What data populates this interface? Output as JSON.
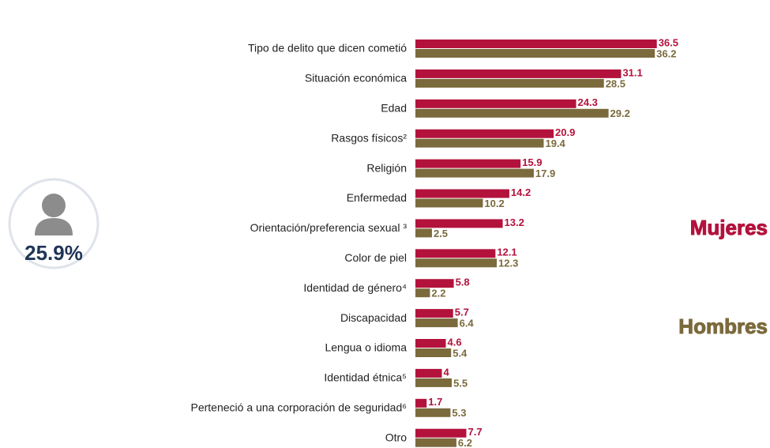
{
  "chart_data": {
    "type": "bar",
    "orientation": "horizontal",
    "categories": [
      "Tipo de delito que dicen cometió",
      "Situación económica",
      "Edad",
      "Rasgos físicos²",
      "Religión",
      "Enfermedad",
      "Orientación/preferencia sexual ³",
      "Color de piel",
      "Identidad de género⁴",
      "Discapacidad",
      "Lengua o idioma",
      "Identidad étnica⁵",
      "Perteneció a una corporación de seguridad⁶",
      "Otro"
    ],
    "series": [
      {
        "name": "Mujeres",
        "color": "#b3123c",
        "values": [
          36.5,
          31.1,
          24.3,
          20.9,
          15.9,
          14.2,
          13.2,
          12.1,
          5.8,
          5.7,
          4.6,
          4,
          1.7,
          7.7
        ]
      },
      {
        "name": "Hombres",
        "color": "#7b6a3c",
        "values": [
          36.2,
          28.5,
          29.2,
          19.4,
          17.9,
          10.2,
          2.5,
          12.3,
          2.2,
          6.4,
          5.4,
          5.5,
          5.3,
          6.2
        ]
      }
    ],
    "xlim": [
      0,
      40
    ],
    "legend": "right",
    "annotations": [
      "25.9%"
    ]
  }
}
